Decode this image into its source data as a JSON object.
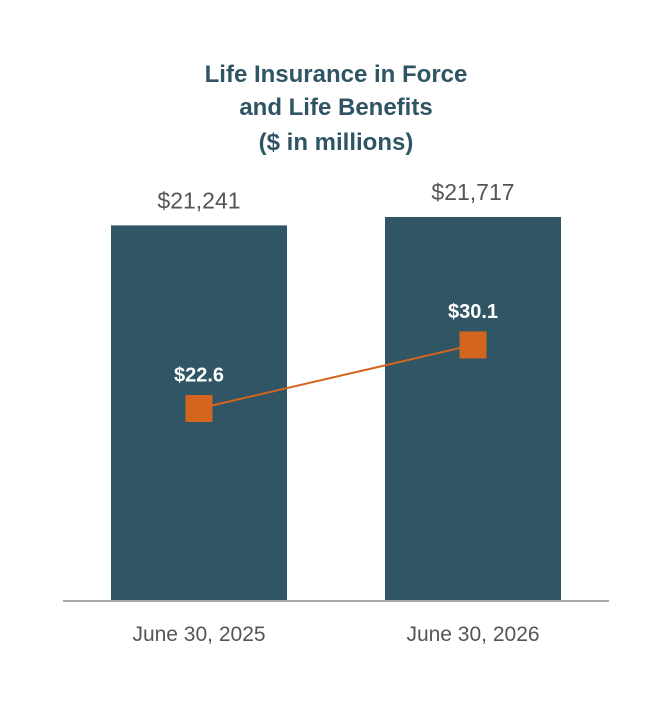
{
  "chart_data": {
    "type": "bar",
    "title": [
      "Life Insurance in Force",
      "and Life Benefits",
      "($ in millions)"
    ],
    "categories": [
      "June 30, 2025",
      "June 30, 2026"
    ],
    "series": [
      {
        "kind": "bar",
        "values": [
          21241,
          21717
        ],
        "labels": [
          "$21,241",
          "$21,717"
        ],
        "color": "#305564"
      },
      {
        "kind": "line",
        "values": [
          22.6,
          30.1
        ],
        "labels": [
          "$22.6",
          "$30.1"
        ],
        "color": "#d4651f"
      }
    ],
    "ylim_bars": [
      0,
      21717
    ],
    "ylim_line": [
      0,
      45.2
    ],
    "grid": false,
    "legend": "none"
  }
}
